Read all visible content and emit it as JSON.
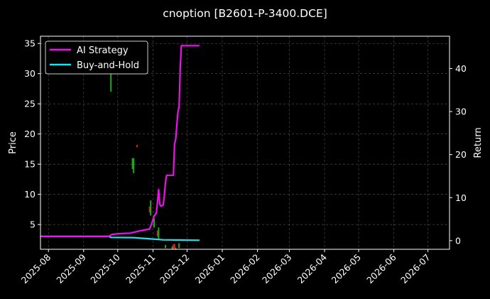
{
  "chart_data": {
    "type": "line",
    "title": "cnoption [B2601-P-3400.DCE]",
    "left_axis": {
      "label": "Price",
      "ylim": [
        0.9,
        36.2
      ],
      "ticks": [
        5,
        10,
        15,
        20,
        25,
        30,
        35
      ]
    },
    "right_axis": {
      "label": "Return",
      "ylim": [
        -2,
        47.5
      ],
      "ticks": [
        0,
        10,
        20,
        30,
        40
      ]
    },
    "x_axis": {
      "range": [
        "2025-07-25",
        "2026-07-20"
      ],
      "ticks": [
        "2025-08",
        "2025-09",
        "2025-10",
        "2025-11",
        "2025-12",
        "2026-01",
        "2026-02",
        "2026-03",
        "2026-04",
        "2026-05",
        "2026-06",
        "2026-07"
      ],
      "tick_dates": [
        "2025-08-01",
        "2025-09-01",
        "2025-10-01",
        "2025-11-01",
        "2025-12-01",
        "2026-01-01",
        "2026-02-01",
        "2026-03-01",
        "2026-04-01",
        "2026-05-01",
        "2026-06-01",
        "2026-07-01"
      ]
    },
    "grid": true,
    "legend": {
      "position": "top-left"
    },
    "series": [
      {
        "name": "AI Strategy",
        "axis": "right",
        "color": "#ee11ee",
        "points": [
          [
            "2025-07-25",
            1.0
          ],
          [
            "2025-09-23",
            1.0
          ],
          [
            "2025-09-24",
            1.1
          ],
          [
            "2025-09-26",
            1.45
          ],
          [
            "2025-10-01",
            1.6
          ],
          [
            "2025-10-07",
            1.7
          ],
          [
            "2025-10-12",
            1.75
          ],
          [
            "2025-10-16",
            2.0
          ],
          [
            "2025-10-20",
            2.25
          ],
          [
            "2025-10-24",
            2.45
          ],
          [
            "2025-10-29",
            2.7
          ],
          [
            "2025-10-31",
            4.0
          ],
          [
            "2025-11-02",
            5.7
          ],
          [
            "2025-11-04",
            6.4
          ],
          [
            "2025-11-05",
            9.0
          ],
          [
            "2025-11-06",
            11.9
          ],
          [
            "2025-11-07",
            8.5
          ],
          [
            "2025-11-08",
            8.0
          ],
          [
            "2025-11-10",
            8.3
          ],
          [
            "2025-11-11",
            10.5
          ],
          [
            "2025-11-12",
            13.5
          ],
          [
            "2025-11-13",
            15.2
          ],
          [
            "2025-11-19",
            15.2
          ],
          [
            "2025-11-20",
            22.5
          ],
          [
            "2025-11-21",
            23.5
          ],
          [
            "2025-11-23",
            30.0
          ],
          [
            "2025-11-24",
            31.0
          ],
          [
            "2025-11-25",
            40.0
          ],
          [
            "2025-11-26",
            45.3
          ],
          [
            "2025-12-12",
            45.3
          ]
        ]
      },
      {
        "name": "Buy-and-Hold",
        "axis": "right",
        "color": "#22e0ee",
        "points": [
          [
            "2025-07-25",
            1.0
          ],
          [
            "2025-09-23",
            1.0
          ],
          [
            "2025-09-25",
            0.75
          ],
          [
            "2025-10-15",
            0.7
          ],
          [
            "2025-10-31",
            0.4
          ],
          [
            "2025-11-10",
            0.2
          ],
          [
            "2025-12-12",
            0.1
          ]
        ]
      }
    ],
    "candles": [
      {
        "date": "2025-09-25",
        "low": 27.0,
        "high": 31.5,
        "color": "#1fa81f"
      },
      {
        "date": "2025-10-14",
        "low": 14.2,
        "high": 16.0,
        "color": "#1fa81f"
      },
      {
        "date": "2025-10-15",
        "low": 13.5,
        "high": 16.0,
        "color": "#1fa81f"
      },
      {
        "date": "2025-10-18",
        "low": 17.8,
        "high": 18.2,
        "color": "#d02020"
      },
      {
        "date": "2025-10-29",
        "low": 7.0,
        "high": 8.0,
        "color": "#d02020"
      },
      {
        "date": "2025-10-30",
        "low": 6.5,
        "high": 9.0,
        "color": "#1fa81f"
      },
      {
        "date": "2025-11-02",
        "low": 4.5,
        "high": 6.0,
        "color": "#1fa81f"
      },
      {
        "date": "2025-11-05",
        "low": 3.0,
        "high": 4.0,
        "color": "#d02020"
      },
      {
        "date": "2025-11-06",
        "low": 2.5,
        "high": 4.5,
        "color": "#1fa81f"
      },
      {
        "date": "2025-11-12",
        "low": 1.1,
        "high": 1.6,
        "color": "#1fa81f"
      },
      {
        "date": "2025-11-18",
        "low": 0.9,
        "high": 1.4,
        "color": "#1fa81f"
      },
      {
        "date": "2025-11-19",
        "low": 1.0,
        "high": 1.7,
        "color": "#d02020"
      },
      {
        "date": "2025-11-20",
        "low": 1.0,
        "high": 1.8,
        "color": "#d02020"
      },
      {
        "date": "2025-11-21",
        "low": 0.8,
        "high": 1.2,
        "color": "#d02020"
      },
      {
        "date": "2025-11-24",
        "low": 1.1,
        "high": 1.9,
        "color": "#1fa81f"
      }
    ]
  }
}
